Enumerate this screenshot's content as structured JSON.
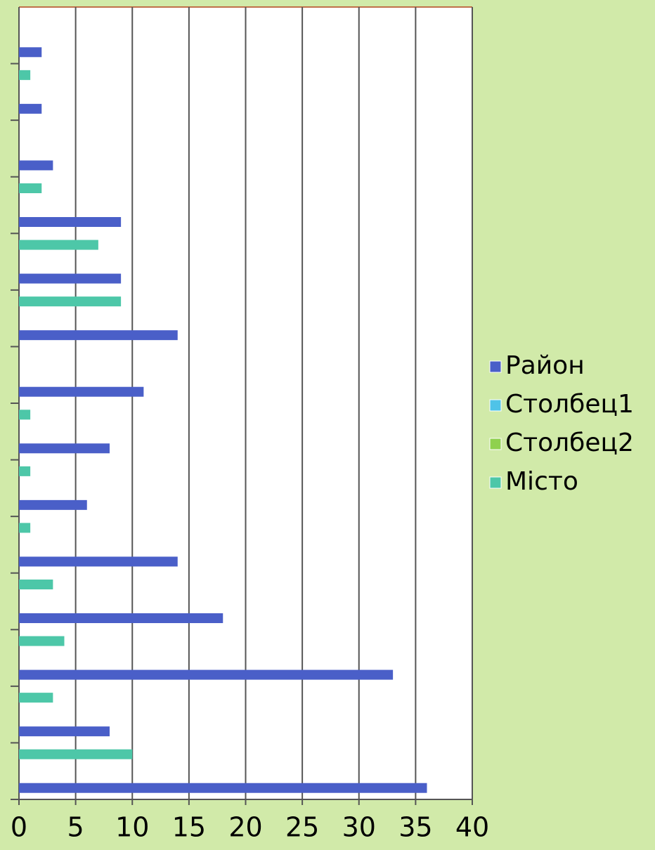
{
  "chart_data": {
    "type": "bar",
    "orientation": "horizontal",
    "categories": [
      null,
      null,
      null,
      null,
      null,
      null,
      null,
      null,
      null,
      null,
      null,
      null,
      null,
      null
    ],
    "series": [
      {
        "name": "Район",
        "color": "#4a5fc8",
        "values": [
          36,
          8,
          33,
          18,
          14,
          6,
          8,
          11,
          14,
          9,
          9,
          3,
          2,
          2
        ]
      },
      {
        "name": "Столбец1",
        "color": "#4fc3e8",
        "values": [
          null,
          null,
          null,
          null,
          null,
          null,
          null,
          null,
          null,
          null,
          null,
          null,
          null,
          null
        ]
      },
      {
        "name": "Столбец2",
        "color": "#8fd14f",
        "values": [
          null,
          null,
          null,
          null,
          null,
          null,
          null,
          null,
          null,
          null,
          null,
          null,
          null,
          null
        ]
      },
      {
        "name": "Місто",
        "color": "#4dc7a8",
        "values": [
          10,
          3,
          4,
          3,
          1,
          1,
          1,
          null,
          9,
          7,
          2,
          null,
          1,
          null
        ]
      }
    ],
    "xlim": [
      0,
      40
    ],
    "xticks": [
      0,
      5,
      10,
      15,
      20,
      25,
      30,
      35,
      40
    ],
    "grid": true,
    "legend": "right"
  }
}
